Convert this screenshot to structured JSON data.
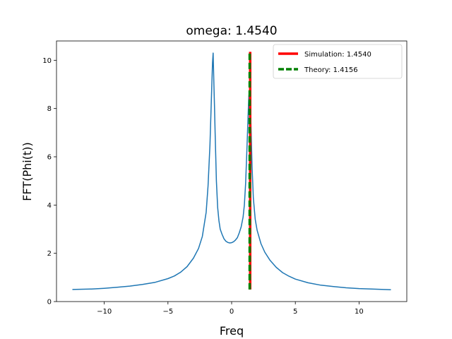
{
  "chart_data": {
    "type": "line",
    "title": "omega: 1.4540",
    "xlabel": "Freq",
    "ylabel": "FFT(Phi(t))",
    "xlim": [
      -13.75,
      13.75
    ],
    "ylim": [
      0,
      10.8
    ],
    "xticks": [
      -10,
      -5,
      0,
      5,
      10
    ],
    "xtick_labels": [
      "−10",
      "−5",
      "0",
      "5",
      "10"
    ],
    "yticks": [
      0,
      2,
      4,
      6,
      8,
      10
    ],
    "ytick_labels": [
      "0",
      "2",
      "4",
      "6",
      "8",
      "10"
    ],
    "grid": false,
    "legend_position": "top-right",
    "series": [
      {
        "color": "#1f77b4",
        "x": [
          -12.5,
          -11,
          -10,
          -9,
          -8,
          -7,
          -6,
          -5,
          -4.5,
          -4,
          -3.5,
          -3,
          -2.6,
          -2.3,
          -2.0,
          -1.85,
          -1.7,
          -1.6,
          -1.5,
          -1.45,
          -1.4,
          -1.35,
          -1.3,
          -1.2,
          -1.1,
          -1.0,
          -0.9,
          -0.75,
          -0.6,
          -0.45,
          -0.3,
          -0.15,
          0,
          0.15,
          0.3,
          0.45,
          0.6,
          0.75,
          0.9,
          1.0,
          1.1,
          1.2,
          1.3,
          1.35,
          1.4,
          1.45,
          1.5,
          1.6,
          1.7,
          1.85,
          2.0,
          2.3,
          2.6,
          3,
          3.5,
          4,
          4.5,
          5,
          6,
          7,
          8,
          9,
          10,
          11,
          12.5
        ],
        "y": [
          0.5,
          0.52,
          0.55,
          0.59,
          0.64,
          0.71,
          0.8,
          0.95,
          1.06,
          1.22,
          1.45,
          1.8,
          2.2,
          2.7,
          3.7,
          4.8,
          6.5,
          8.2,
          9.9,
          10.3,
          9.2,
          8.1,
          7.0,
          5.0,
          3.9,
          3.35,
          3.0,
          2.78,
          2.6,
          2.5,
          2.45,
          2.43,
          2.44,
          2.48,
          2.55,
          2.65,
          2.85,
          3.1,
          3.5,
          4.0,
          4.9,
          6.3,
          7.8,
          8.5,
          8.7,
          8.3,
          7.6,
          5.6,
          4.3,
          3.4,
          2.95,
          2.4,
          2.05,
          1.72,
          1.42,
          1.2,
          1.05,
          0.93,
          0.78,
          0.68,
          0.62,
          0.57,
          0.54,
          0.52,
          0.49
        ]
      }
    ],
    "vlines": [
      {
        "label": "Simulation: 1.4540",
        "x": 1.454,
        "y_range": [
          0.5,
          10.35
        ],
        "color": "#ff0000",
        "style": "solid"
      },
      {
        "label": "Theory: 1.4156",
        "x": 1.4156,
        "y_range": [
          0.5,
          10.35
        ],
        "color": "#008000",
        "style": "dashed"
      }
    ]
  }
}
